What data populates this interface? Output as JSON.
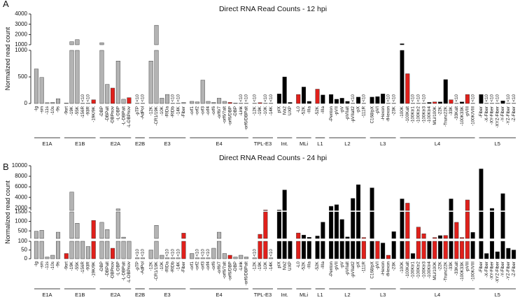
{
  "chart_data": [
    {
      "type": "bar",
      "panel": "A",
      "title": "Direct RNA Read Counts - 12 hpi",
      "ylabel": "Normalized read count",
      "segments": [
        {
          "ylim": [
            0,
            1000
          ],
          "yticks": [
            0,
            500,
            1000
          ]
        },
        {
          "ylim": [
            1000,
            4000
          ],
          "yticks": [
            1000,
            2000,
            3000,
            4000
          ]
        }
      ],
      "groups": [
        {
          "label": "E1A",
          "categories": [
            "-Ig",
            "-sm",
            "-11s",
            "-10s",
            "-9s"
          ],
          "values": [
            650,
            490,
            15,
            20,
            90
          ],
          "colors": [
            "#b3b3b3",
            "#b3b3b3",
            "#b3b3b3",
            "#b3b3b3",
            "#b3b3b3"
          ],
          "value_labels": [
            null,
            null,
            null,
            null,
            null
          ]
        },
        {
          "label": "E1B",
          "categories": [
            "-9srt",
            "-19K",
            "-55K",
            "-156R",
            "-93R",
            "-19K/9K"
          ],
          "values": [
            10,
            1300,
            1500,
            5,
            5,
            70
          ],
          "colors": [
            "#b3b3b3",
            "#b3b3b3",
            "#b3b3b3",
            "#b3b3b3",
            "#b3b3b3",
            "#e0201b"
          ],
          "value_labels": [
            null,
            null,
            null,
            "<10",
            "<10",
            null
          ]
        },
        {
          "label": "E2A",
          "categories": [
            "-DBP",
            "-DBPalt",
            "-DBPnov",
            "-L-DBP",
            "-L-DBPalt",
            "-L-DBPnov"
          ],
          "values": [
            1200,
            360,
            290,
            800,
            80,
            110
          ],
          "colors": [
            "#b3b3b3",
            "#b3b3b3",
            "#e0201b",
            "#b3b3b3",
            "#b3b3b3",
            "#e0201b"
          ],
          "value_labels": [
            null,
            null,
            null,
            null,
            null,
            null
          ]
        },
        {
          "label": "E2B",
          "categories": [
            "-pTP",
            "-AdPol"
          ],
          "values": [
            5,
            5
          ],
          "colors": [
            "#b3b3b3",
            "#b3b3b3"
          ],
          "value_labels": [
            "<10",
            "<10"
          ]
        },
        {
          "label": "E3",
          "categories": [
            "-12K",
            "-CR1/19K",
            "-10K",
            "-RIDa",
            "-RIDb",
            "-14K",
            "-Fiber"
          ],
          "values": [
            800,
            2900,
            100,
            170,
            5,
            5,
            20
          ],
          "colors": [
            "#b3b3b3",
            "#b3b3b3",
            "#b3b3b3",
            "#b3b3b3",
            "#b3b3b3",
            "#b3b3b3",
            "#b3b3b3"
          ],
          "value_labels": [
            null,
            null,
            null,
            null,
            "<10",
            "<10",
            null
          ]
        },
        {
          "label": "E4",
          "categories": [
            "-orf1",
            "-orf2",
            "-orf3",
            "-orf4",
            "-orf6",
            "-orf6/7",
            "-orf6/7alt",
            "-orf6/DBP",
            "-DBP",
            "-Link",
            "-orf6/DBPalt"
          ],
          "values": [
            40,
            30,
            440,
            40,
            20,
            100,
            40,
            20,
            10,
            5,
            5
          ],
          "colors": [
            "#b3b3b3",
            "#b3b3b3",
            "#b3b3b3",
            "#b3b3b3",
            "#b3b3b3",
            "#b3b3b3",
            "#b3b3b3",
            "#e0201b",
            "#b3b3b3",
            "#b3b3b3",
            "#b3b3b3"
          ],
          "value_labels": [
            null,
            null,
            null,
            null,
            null,
            null,
            null,
            null,
            null,
            "<10",
            "<10"
          ]
        },
        {
          "label": "TPL-E3",
          "categories": [
            "-12K",
            "-19K",
            "-10K",
            "-14K"
          ],
          "values": [
            5,
            15,
            5,
            5
          ],
          "colors": [
            "#b3b3b3",
            "#e0201b",
            "#b3b3b3",
            "#b3b3b3"
          ],
          "value_labels": [
            "<10",
            null,
            "<10",
            "<10"
          ]
        },
        {
          "label": "Int.",
          "categories": [
            "pIX",
            "IVa2",
            "UXP"
          ],
          "values": [
            180,
            500,
            20
          ],
          "colors": [
            "#000000",
            "#000000",
            "#000000"
          ],
          "value_labels": [
            null,
            null,
            null
          ]
        },
        {
          "label": "MLi",
          "categories": [
            "-L0",
            "-52K",
            "-IIIa"
          ],
          "values": [
            170,
            310,
            40
          ],
          "colors": [
            "#e0201b",
            "#000000",
            "#000000"
          ],
          "value_labels": [
            null,
            null,
            null
          ]
        },
        {
          "label": "L1",
          "categories": [
            "-52K",
            "-IIIa"
          ],
          "values": [
            270,
            160
          ],
          "colors": [
            "#e0201b",
            "#000000"
          ],
          "value_labels": [
            null,
            null
          ]
        },
        {
          "label": "L2",
          "categories": [
            "-Penton",
            "-pVII",
            "-pV",
            "-pVIIalt",
            "-pVIIalt2",
            "-pX",
            "-111R"
          ],
          "values": [
            170,
            80,
            100,
            40,
            5,
            120,
            5
          ],
          "colors": [
            "#000000",
            "#000000",
            "#000000",
            "#000000",
            "#000000",
            "#000000",
            "#000000"
          ],
          "value_labels": [
            null,
            null,
            null,
            null,
            "<10",
            null,
            "<10"
          ]
        },
        {
          "label": "L3",
          "categories": [
            "C168/pX",
            "-pVI",
            "-Hexon",
            "-fHexon",
            "-23K"
          ],
          "values": [
            120,
            130,
            180,
            5,
            5
          ],
          "colors": [
            "#000000",
            "#000000",
            "#000000",
            "#000000",
            "#000000"
          ],
          "value_labels": [
            null,
            null,
            null,
            "<10",
            "<10"
          ]
        },
        {
          "label": "L4",
          "categories": [
            "-100K",
            "-100Kalt",
            "-100Ktr1",
            "-100Ktr2",
            "-100Ktr3",
            "-100Ktr4",
            "MLi/100K",
            "-22K",
            "-Trunc22K",
            "-33K",
            "-33Kalt",
            "-100K33K",
            "-pVIII",
            "-100K/VIII"
          ],
          "values": [
            1100,
            560,
            5,
            5,
            5,
            20,
            30,
            30,
            450,
            70,
            5,
            30,
            170,
            5
          ],
          "colors": [
            "#000000",
            "#e0201b",
            "#000000",
            "#000000",
            "#000000",
            "#000000",
            "#e0201b",
            "#000000",
            "#000000",
            "#e0201b",
            "#000000",
            "#000000",
            "#e0201b",
            "#000000"
          ],
          "value_labels": [
            null,
            null,
            "<10",
            "<10",
            "<10",
            null,
            null,
            null,
            null,
            null,
            "<10",
            null,
            null,
            "<10"
          ]
        },
        {
          "label": "L5",
          "categories": [
            "-Fiber",
            "-X-Fiber",
            "-XY-Fiber",
            "-XYZ-Fiber",
            "-Y-Fiber",
            "-YZ-Fiber",
            "-Z-Fiber"
          ],
          "values": [
            170,
            5,
            5,
            5,
            50,
            5,
            5
          ],
          "colors": [
            "#000000",
            "#000000",
            "#000000",
            "#000000",
            "#000000",
            "#000000",
            "#000000"
          ],
          "value_labels": [
            null,
            "<10",
            "<10",
            "<10",
            null,
            "<10",
            "<10"
          ]
        }
      ]
    },
    {
      "type": "bar",
      "panel": "B",
      "title": "Direct RNA Read Counts - 24 hpi",
      "ylabel": "Normalized read count",
      "segments": [
        {
          "ylim": [
            0,
            100
          ],
          "yticks": [
            0,
            50,
            100
          ]
        },
        {
          "ylim": [
            100,
            1500
          ],
          "yticks": [
            500,
            1000,
            1500
          ]
        },
        {
          "ylim": [
            1500,
            10000
          ],
          "yticks": [
            2000,
            4000,
            6000,
            8000,
            10000
          ]
        }
      ],
      "groups": [
        {
          "label": "E1A",
          "categories": [
            "-Ig",
            "-sm",
            "-11s",
            "-10s",
            "-9s"
          ],
          "values": [
            480,
            530,
            10,
            20,
            430
          ],
          "colors": [
            "#b3b3b3",
            "#b3b3b3",
            "#b3b3b3",
            "#b3b3b3",
            "#b3b3b3"
          ],
          "value_labels": [
            null,
            null,
            null,
            null,
            null
          ]
        },
        {
          "label": "E1B",
          "categories": [
            "-9srt",
            "-19K",
            "-55K",
            "-156R",
            "-93R",
            "-19K/9K"
          ],
          "values": [
            30,
            5000,
            900,
            100,
            70,
            1050
          ],
          "colors": [
            "#e0201b",
            "#b3b3b3",
            "#b3b3b3",
            "#b3b3b3",
            "#b3b3b3",
            "#e0201b"
          ],
          "value_labels": [
            null,
            null,
            null,
            null,
            null,
            null
          ]
        },
        {
          "label": "E2A",
          "categories": [
            "-DBP",
            "-DBPalt",
            "-DBPnov",
            "-L-DBP",
            "-L-DBPalt",
            "-L-DBPnov"
          ],
          "values": [
            950,
            570,
            60,
            1800,
            170,
            100
          ],
          "colors": [
            "#b3b3b3",
            "#b3b3b3",
            "#e0201b",
            "#b3b3b3",
            "#b3b3b3",
            "#b3b3b3"
          ],
          "value_labels": [
            null,
            null,
            null,
            null,
            null,
            null
          ]
        },
        {
          "label": "E2B",
          "categories": [
            "-pTP",
            "-AdPol"
          ],
          "values": [
            5,
            5
          ],
          "colors": [
            "#b3b3b3",
            "#b3b3b3"
          ],
          "value_labels": [
            "<10",
            "<10"
          ]
        },
        {
          "label": "E3",
          "categories": [
            "-12K",
            "-CR1/19K",
            "-10K",
            "-RIDa",
            "-RIDb",
            "-14K",
            "-Fiber"
          ],
          "values": [
            50,
            790,
            20,
            5,
            5,
            5,
            380
          ],
          "colors": [
            "#b3b3b3",
            "#b3b3b3",
            "#b3b3b3",
            "#b3b3b3",
            "#b3b3b3",
            "#b3b3b3",
            "#e0201b"
          ],
          "value_labels": [
            null,
            null,
            null,
            "<10",
            "<10",
            "<10",
            null
          ]
        },
        {
          "label": "E4",
          "categories": [
            "-orf1",
            "-orf2",
            "-orf3",
            "-orf4",
            "-orf6",
            "-orf6/7",
            "-orf6/7alt",
            "-orf6/DBP",
            "-DBP",
            "-Link",
            "-orf6/DBPalt"
          ],
          "values": [
            30,
            5,
            5,
            5,
            60,
            430,
            30,
            20,
            10,
            20,
            10
          ],
          "colors": [
            "#b3b3b3",
            "#b3b3b3",
            "#b3b3b3",
            "#b3b3b3",
            "#b3b3b3",
            "#b3b3b3",
            "#b3b3b3",
            "#e0201b",
            "#b3b3b3",
            "#b3b3b3",
            "#b3b3b3"
          ],
          "value_labels": [
            null,
            "<10",
            "<10",
            "<10",
            null,
            null,
            null,
            null,
            null,
            null,
            null
          ]
        },
        {
          "label": "TPL-E3",
          "categories": [
            "-12K",
            "-19K",
            "-10K",
            "-14K"
          ],
          "values": [
            5,
            320,
            1600,
            5
          ],
          "colors": [
            "#b3b3b3",
            "#e0201b",
            "#e0201b",
            "#b3b3b3"
          ],
          "value_labels": [
            "<10",
            null,
            null,
            "<10"
          ]
        },
        {
          "label": "Int.",
          "categories": [
            "pIX",
            "IVa2",
            "UXP"
          ],
          "values": [
            1600,
            5400,
            100
          ],
          "colors": [
            "#000000",
            "#000000",
            "#000000"
          ],
          "value_labels": [
            null,
            null,
            null
          ]
        },
        {
          "label": "MLi",
          "categories": [
            "-L0",
            "-52K",
            "-IIIa"
          ],
          "values": [
            390,
            280,
            160
          ],
          "colors": [
            "#e0201b",
            "#000000",
            "#000000"
          ],
          "value_labels": [
            null,
            null,
            null
          ]
        },
        {
          "label": "L1",
          "categories": [
            "-52K",
            "-IIIa"
          ],
          "values": [
            230,
            960
          ],
          "colors": [
            "#000000",
            "#000000"
          ],
          "value_labels": [
            null,
            null
          ]
        },
        {
          "label": "L2",
          "categories": [
            "-Penton",
            "-pVII",
            "-pV",
            "-pVIIalt",
            "-pVIIalt2",
            "-pX",
            "-111R"
          ],
          "values": [
            2300,
            2600,
            1100,
            180,
            3800,
            6400,
            150
          ],
          "colors": [
            "#000000",
            "#000000",
            "#000000",
            "#000000",
            "#000000",
            "#000000",
            "#e0201b"
          ],
          "value_labels": [
            null,
            null,
            null,
            null,
            null,
            null,
            null
          ]
        },
        {
          "label": "L3",
          "categories": [
            "C168/pX",
            "-pVI",
            "-Hexon",
            "-fHexon",
            "-23K"
          ],
          "values": [
            5800,
            100,
            90,
            20,
            460
          ],
          "colors": [
            "#000000",
            "#e0201b",
            "#000000",
            "#e0201b",
            "#000000"
          ],
          "value_labels": [
            null,
            null,
            null,
            null,
            null
          ]
        },
        {
          "label": "L4",
          "categories": [
            "-100K",
            "-100Kalt",
            "-100Ktr1",
            "-100Ktr2",
            "-100Ktr3",
            "-100Ktr4",
            "MLi/100K",
            "-22K",
            "-Trunc22K",
            "-33K",
            "-33Kalt",
            "-100K33K",
            "-pVIII",
            "-100K/VIII"
          ],
          "values": [
            3700,
            2900,
            30,
            700,
            350,
            100,
            150,
            250,
            260,
            3700,
            950,
            150,
            3500,
            420
          ],
          "colors": [
            "#000000",
            "#e0201b",
            "#000000",
            "#e0201b",
            "#e0201b",
            "#000000",
            "#e0201b",
            "#000000",
            "#e0201b",
            "#000000",
            "#e0201b",
            "#e0201b",
            "#e0201b",
            "#000000"
          ],
          "value_labels": [
            null,
            null,
            null,
            null,
            null,
            null,
            null,
            null,
            null,
            null,
            null,
            null,
            null,
            null
          ]
        },
        {
          "label": "L5",
          "categories": [
            "-Fiber",
            "-X-Fiber",
            "-XY-Fiber",
            "-XYZ-Fiber",
            "-Y-Fiber",
            "-YZ-Fiber",
            "-Z-Fiber"
          ],
          "values": [
            9400,
            30,
            1900,
            40,
            4700,
            60,
            50
          ],
          "colors": [
            "#000000",
            "#000000",
            "#000000",
            "#000000",
            "#000000",
            "#000000",
            "#000000"
          ],
          "value_labels": [
            null,
            null,
            null,
            null,
            null,
            null,
            null
          ]
        }
      ]
    }
  ]
}
